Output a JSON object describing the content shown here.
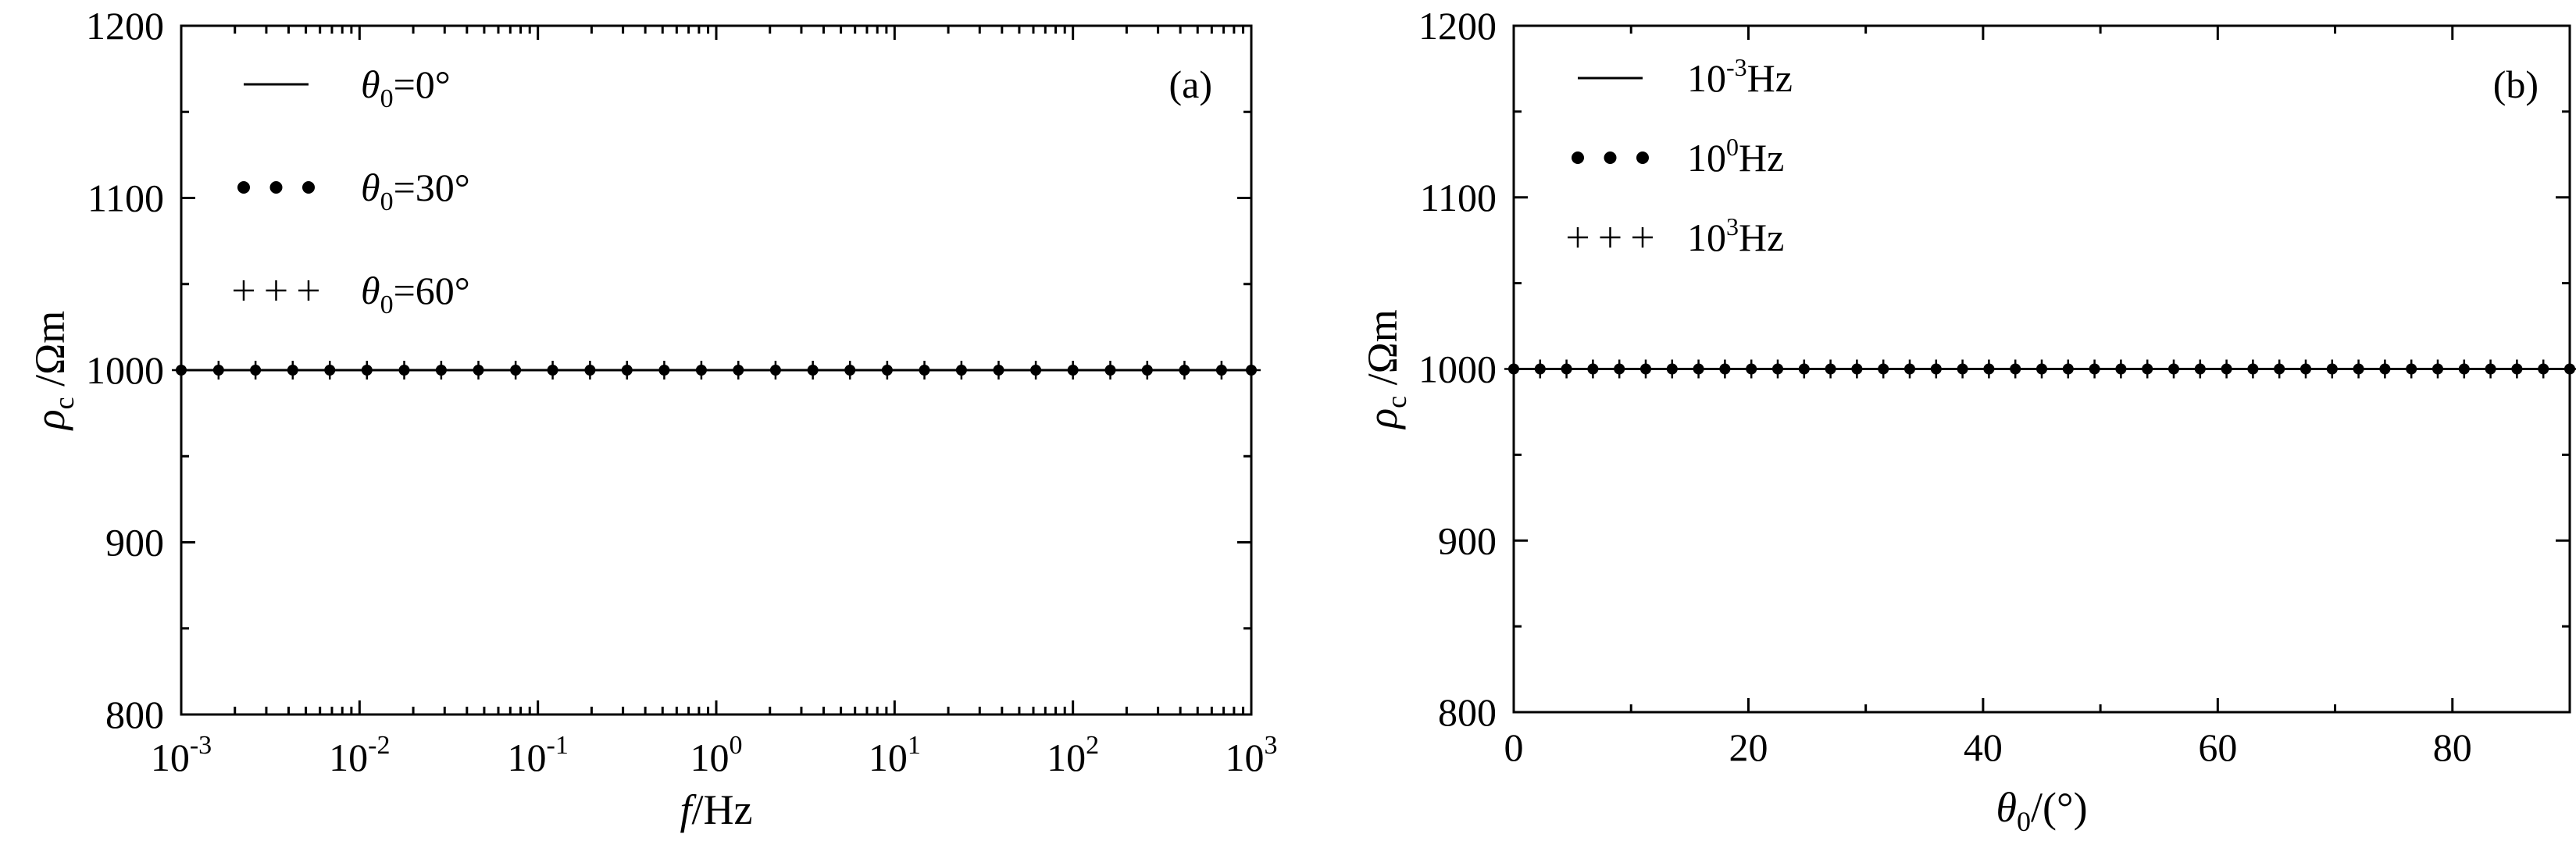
{
  "chart_data": [
    {
      "type": "line",
      "panel_label": "(a)",
      "x_scale": "log",
      "xlabel": {
        "main": "f",
        "unit": "/Hz"
      },
      "ylabel": {
        "main": "ρ",
        "sub": "c",
        "unit": "/Ωm"
      },
      "xlim": [
        0.001,
        1000
      ],
      "ylim": [
        800,
        1200
      ],
      "x_ticks": [
        {
          "base": "10",
          "exp": "-3",
          "value": 0.001
        },
        {
          "base": "10",
          "exp": "-2",
          "value": 0.01
        },
        {
          "base": "10",
          "exp": "-1",
          "value": 0.1
        },
        {
          "base": "10",
          "exp": "0",
          "value": 1
        },
        {
          "base": "10",
          "exp": "1",
          "value": 10
        },
        {
          "base": "10",
          "exp": "2",
          "value": 100
        },
        {
          "base": "10",
          "exp": "3",
          "value": 1000
        }
      ],
      "y_ticks": [
        "800",
        "900",
        "1000",
        "1100",
        "1200"
      ],
      "grid": false,
      "legend_position": "top-left",
      "x": [
        0.001,
        0.00162,
        0.00261,
        0.00422,
        0.00681,
        0.011,
        0.0178,
        0.0287,
        0.0464,
        0.075,
        0.121,
        0.196,
        0.316,
        0.511,
        0.825,
        1.33,
        2.15,
        3.48,
        5.62,
        9.09,
        14.7,
        23.7,
        38.3,
        61.9,
        100,
        162,
        261,
        422,
        681,
        1000
      ],
      "series": [
        {
          "label_sym": "θ",
          "label_sub": "0",
          "label_rest": "=0°",
          "marker": "none",
          "values": [
            1000,
            1000,
            1000,
            1000,
            1000,
            1000,
            1000,
            1000,
            1000,
            1000,
            1000,
            1000,
            1000,
            1000,
            1000,
            1000,
            1000,
            1000,
            1000,
            1000,
            1000,
            1000,
            1000,
            1000,
            1000,
            1000,
            1000,
            1000,
            1000,
            1000
          ]
        },
        {
          "label_sym": "θ",
          "label_sub": "0",
          "label_rest": "=30°",
          "marker": "dot",
          "values": [
            1000,
            1000,
            1000,
            1000,
            1000,
            1000,
            1000,
            1000,
            1000,
            1000,
            1000,
            1000,
            1000,
            1000,
            1000,
            1000,
            1000,
            1000,
            1000,
            1000,
            1000,
            1000,
            1000,
            1000,
            1000,
            1000,
            1000,
            1000,
            1000,
            1000
          ]
        },
        {
          "label_sym": "θ",
          "label_sub": "0",
          "label_rest": "=60°",
          "marker": "plus",
          "values": [
            1000,
            1000,
            1000,
            1000,
            1000,
            1000,
            1000,
            1000,
            1000,
            1000,
            1000,
            1000,
            1000,
            1000,
            1000,
            1000,
            1000,
            1000,
            1000,
            1000,
            1000,
            1000,
            1000,
            1000,
            1000,
            1000,
            1000,
            1000,
            1000,
            1000
          ]
        }
      ]
    },
    {
      "type": "line",
      "panel_label": "(b)",
      "x_scale": "linear",
      "xlabel": {
        "main": "θ",
        "sub": "0",
        "unit": "/(°)"
      },
      "ylabel": {
        "main": "ρ",
        "sub": "c",
        "unit": "/Ωm"
      },
      "xlim": [
        0,
        90
      ],
      "ylim": [
        800,
        1200
      ],
      "x_ticks": [
        {
          "label": "0",
          "value": 0
        },
        {
          "label": "20",
          "value": 20
        },
        {
          "label": "40",
          "value": 40
        },
        {
          "label": "60",
          "value": 60
        },
        {
          "label": "80",
          "value": 80
        }
      ],
      "y_ticks": [
        "800",
        "900",
        "1000",
        "1100",
        "1200"
      ],
      "grid": false,
      "legend_position": "top-left",
      "x": [
        0,
        2.25,
        4.5,
        6.75,
        9,
        11.25,
        13.5,
        15.75,
        18,
        20.25,
        22.5,
        24.75,
        27,
        29.25,
        31.5,
        33.75,
        36,
        38.25,
        40.5,
        42.75,
        45,
        47.25,
        49.5,
        51.75,
        54,
        56.25,
        58.5,
        60.75,
        63,
        65.25,
        67.5,
        69.75,
        72,
        74.25,
        76.5,
        78.75,
        81,
        83.25,
        85.5,
        87.75,
        90
      ],
      "series": [
        {
          "label_base": "10",
          "label_exp": "-3",
          "label_rest": "Hz",
          "marker": "none",
          "values": [
            1000,
            1000,
            1000,
            1000,
            1000,
            1000,
            1000,
            1000,
            1000,
            1000,
            1000,
            1000,
            1000,
            1000,
            1000,
            1000,
            1000,
            1000,
            1000,
            1000,
            1000,
            1000,
            1000,
            1000,
            1000,
            1000,
            1000,
            1000,
            1000,
            1000,
            1000,
            1000,
            1000,
            1000,
            1000,
            1000,
            1000,
            1000,
            1000,
            1000,
            1000
          ]
        },
        {
          "label_base": "10",
          "label_exp": "0",
          "label_rest": "Hz",
          "marker": "dot",
          "values": [
            1000,
            1000,
            1000,
            1000,
            1000,
            1000,
            1000,
            1000,
            1000,
            1000,
            1000,
            1000,
            1000,
            1000,
            1000,
            1000,
            1000,
            1000,
            1000,
            1000,
            1000,
            1000,
            1000,
            1000,
            1000,
            1000,
            1000,
            1000,
            1000,
            1000,
            1000,
            1000,
            1000,
            1000,
            1000,
            1000,
            1000,
            1000,
            1000,
            1000,
            1000
          ]
        },
        {
          "label_base": "10",
          "label_exp": "3",
          "label_rest": "Hz",
          "marker": "plus",
          "values": [
            1000,
            1000,
            1000,
            1000,
            1000,
            1000,
            1000,
            1000,
            1000,
            1000,
            1000,
            1000,
            1000,
            1000,
            1000,
            1000,
            1000,
            1000,
            1000,
            1000,
            1000,
            1000,
            1000,
            1000,
            1000,
            1000,
            1000,
            1000,
            1000,
            1000,
            1000,
            1000,
            1000,
            1000,
            1000,
            1000,
            1000,
            1000,
            1000,
            1000,
            1000
          ]
        }
      ]
    }
  ]
}
